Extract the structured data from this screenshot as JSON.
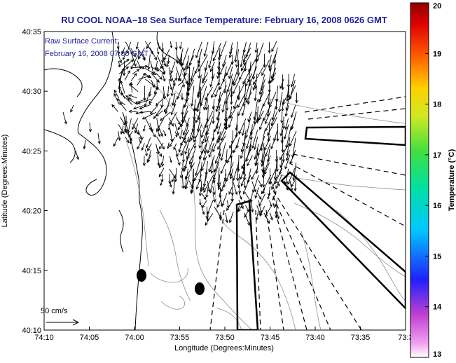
{
  "title": "RU COOL  NOAA–18  Sea Surface Temperature:  February 16, 2008 0626 GMT",
  "legend": {
    "line1": "Raw Surface Current:",
    "line2": "February 16, 2008 07:00 GMT"
  },
  "scale_label": "50 cm/s",
  "axes": {
    "xlabel": "Longitude (Degrees:Minutes)",
    "ylabel": "Latitude (Degrees:Minutes)",
    "xticks": [
      "74:10",
      "74:05",
      "74:00",
      "73:55",
      "73:50",
      "73:45",
      "73:40",
      "73:35",
      "73:3"
    ],
    "yticks": [
      "40:35",
      "40:30",
      "40:25",
      "40:20",
      "40:15",
      "40:10"
    ]
  },
  "colorbar": {
    "label": "Temperature (°C)",
    "ticks": [
      "20",
      "19",
      "18",
      "17",
      "16",
      "15",
      "14",
      "13"
    ],
    "min": 13,
    "max": 20
  },
  "map": {
    "lon_range_deg": [
      -74.1667,
      -73.5
    ],
    "lat_range_deg": [
      40.1667,
      40.5833
    ],
    "grid": false
  },
  "colors": {
    "title": "#1f1f9a",
    "legend_text": "#1f1f9a",
    "coast": "#000000",
    "bathymetry": "#8c8c8c",
    "vectors": "#000000"
  }
}
